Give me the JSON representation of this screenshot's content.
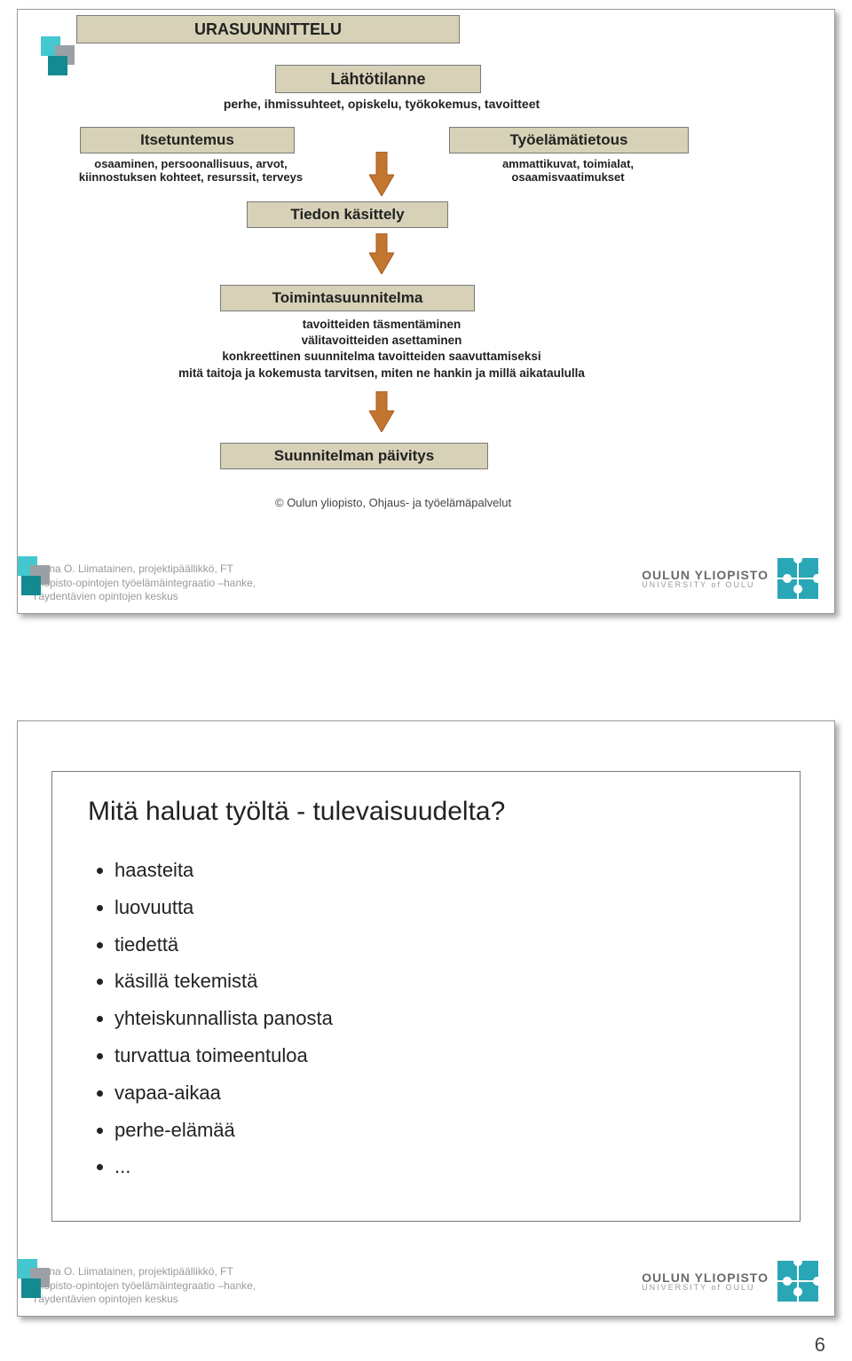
{
  "page_number": "6",
  "colors": {
    "box_fill": "#d6d1b7",
    "box_border": "#7a7a7a",
    "arrow_fill": "#c2762f",
    "arrow_border": "#a85a1e",
    "deco_cyan": "#44c7cf",
    "deco_teal": "#138a8f",
    "deco_gray": "#9aa0a4",
    "puzzle": "#2aa7b7",
    "credit_gray": "#9a9a9a"
  },
  "slide1": {
    "header": "URASUUNNITTELU",
    "box_start": "Lähtötilanne",
    "start_sub": "perhe, ihmissuhteet, opiskelu, työkokemus, tavoitteet",
    "box_left": "Itsetuntemus",
    "left_sub": "osaaminen, persoonallisuus, arvot,\nkiinnostuksen kohteet, resurssit, terveys",
    "box_right": "Työelämätietous",
    "right_sub": "ammattikuvat, toimialat,\nosaamisvaatimukset",
    "box_mid": "Tiedon käsittely",
    "box_plan": "Toimintasuunnitelma",
    "plan_sub": "tavoitteiden täsmentäminen\nvälitavoitteiden asettaminen\nkonkreettinen suunnitelma tavoitteiden saavuttamiseksi\nmitä taitoja ja kokemusta tarvitsen, miten ne hankin ja millä aikataululla",
    "box_update": "Suunnitelman päivitys",
    "copyright": "© Oulun yliopisto, Ohjaus- ja työelämäpalvelut"
  },
  "slide2": {
    "title": "Mitä haluat työltä - tulevaisuudelta?",
    "items": [
      "haasteita",
      "luovuutta",
      "tiedettä",
      "käsillä tekemistä",
      "yhteiskunnallista panosta",
      "turvattua toimeentuloa",
      "vapaa-aikaa",
      "perhe-elämää",
      "..."
    ]
  },
  "credits": {
    "l1": "Jaana O. Liimatainen, projektipäällikkö, FT",
    "l2": "Yliopisto-opintojen työelämäintegraatio –hanke,",
    "l3": "Täydentävien opintojen keskus"
  },
  "logo": {
    "t1": "OULUN YLIOPISTO",
    "t2": "UNIVERSITY of OULU"
  }
}
